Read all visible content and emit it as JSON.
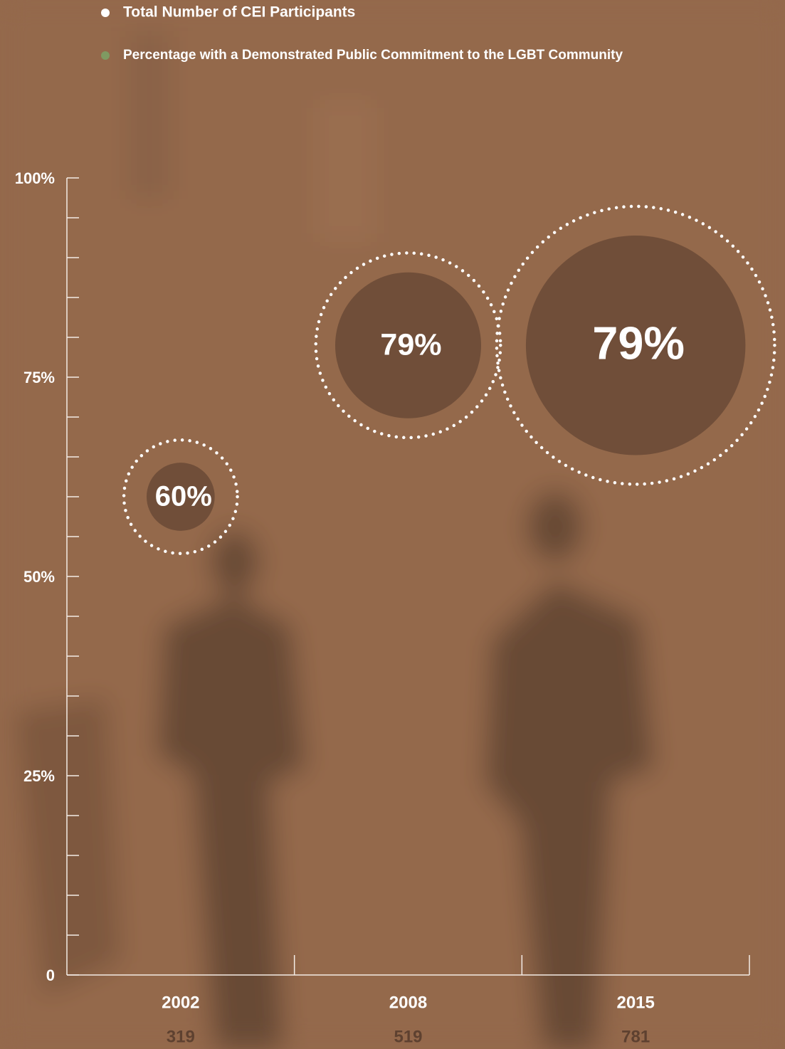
{
  "chart_data": {
    "type": "bubble",
    "categories": [
      "2002",
      "2008",
      "2015"
    ],
    "series": [
      {
        "name": "Total Number of CEI Participants",
        "color": "#ffffff",
        "values": [
          319,
          519,
          781
        ]
      },
      {
        "name": "Percentage with a Demonstrated Public Commitment to the LGBT Community",
        "color": "#7f9a62",
        "values": [
          60,
          79,
          79
        ],
        "value_labels": [
          "60%",
          "79%",
          "79%"
        ]
      }
    ],
    "ylim": [
      0,
      100
    ],
    "yticks": [
      {
        "value": 0,
        "label": "0"
      },
      {
        "value": 25,
        "label": "25%"
      },
      {
        "value": 50,
        "label": "50%"
      },
      {
        "value": 75,
        "label": "75%"
      },
      {
        "value": 100,
        "label": "100%"
      }
    ],
    "minor_yticks": [
      5,
      10,
      15,
      20,
      30,
      35,
      40,
      45,
      55,
      60,
      65,
      70,
      80,
      85,
      90,
      95
    ]
  }
}
